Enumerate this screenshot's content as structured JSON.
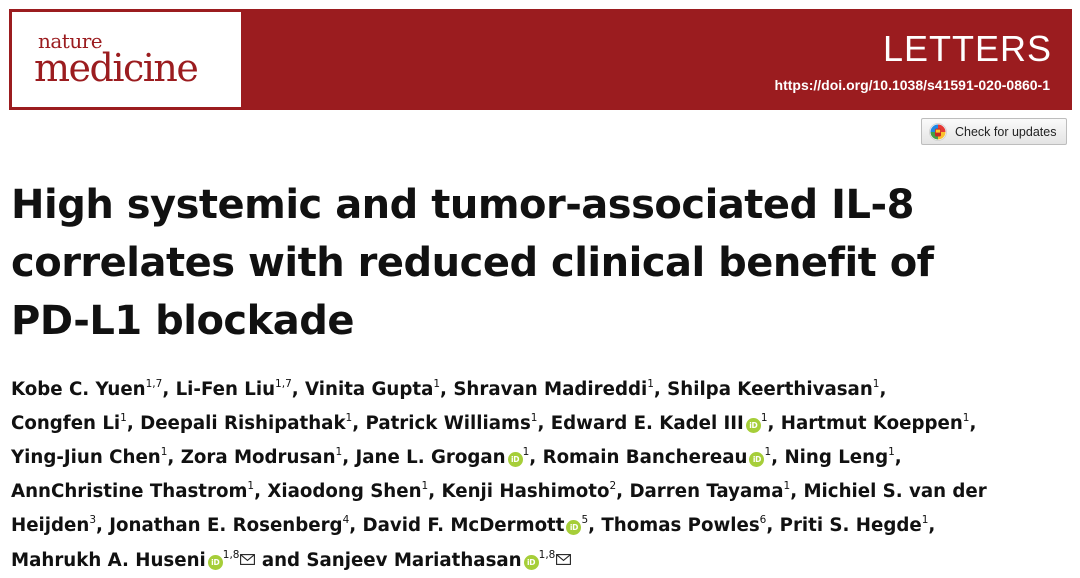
{
  "header": {
    "logo_top": "nature",
    "logo_bottom": "medicine",
    "section": "LETTERS",
    "doi": "https://doi.org/10.1038/s41591-020-0860-1",
    "brand_color": "#9b1c1f"
  },
  "check_updates": {
    "label": "Check for updates",
    "icon": "crossmark-icon"
  },
  "article": {
    "title_lines": [
      "High systemic and tumor-associated IL-8",
      "correlates with reduced clinical benefit of",
      "PD-L1 blockade"
    ]
  },
  "authors": {
    "orcid_color": "#a6ce39",
    "lines": [
      [
        {
          "name": "Kobe C. Yuen",
          "sup": "1,7"
        },
        {
          "name": "Li-Fen Liu",
          "sup": "1,7"
        },
        {
          "name": "Vinita Gupta",
          "sup": "1"
        },
        {
          "name": "Shravan Madireddi",
          "sup": "1"
        },
        {
          "name": "Shilpa Keerthivasan",
          "sup": "1",
          "trail": ","
        }
      ],
      [
        {
          "name": "Congfen Li",
          "sup": "1"
        },
        {
          "name": "Deepali Rishipathak",
          "sup": "1"
        },
        {
          "name": "Patrick Williams",
          "sup": "1"
        },
        {
          "name": "Edward E. Kadel III",
          "sup": "1",
          "orcid": true
        },
        {
          "name": "Hartmut Koeppen",
          "sup": "1",
          "trail": ","
        }
      ],
      [
        {
          "name": "Ying-Jiun Chen",
          "sup": "1"
        },
        {
          "name": "Zora Modrusan",
          "sup": "1"
        },
        {
          "name": "Jane L. Grogan",
          "sup": "1",
          "orcid": true
        },
        {
          "name": "Romain Banchereau",
          "sup": "1",
          "orcid": true
        },
        {
          "name": "Ning Leng",
          "sup": "1",
          "trail": ","
        }
      ],
      [
        {
          "name": "AnnChristine Thastrom",
          "sup": "1"
        },
        {
          "name": "Xiaodong Shen",
          "sup": "1"
        },
        {
          "name": "Kenji Hashimoto",
          "sup": "2"
        },
        {
          "name": "Darren Tayama",
          "sup": "1"
        },
        {
          "name": "Michiel S. van der",
          "noSep": true
        }
      ],
      [
        {
          "name": "Heijden",
          "sup": "3"
        },
        {
          "name": "Jonathan E. Rosenberg",
          "sup": "4"
        },
        {
          "name": "David F. McDermott",
          "sup": "5",
          "orcid": true
        },
        {
          "name": "Thomas Powles",
          "sup": "6"
        },
        {
          "name": "Priti S. Hegde",
          "sup": "1",
          "trail": ","
        }
      ],
      [
        {
          "name": "Mahrukh A. Huseni",
          "sup": "1,8",
          "orcid": true,
          "email": true,
          "trail": " and",
          "noComma": true
        },
        {
          "name": "Sanjeev Mariathasan",
          "sup": "1,8",
          "orcid": true,
          "email": true,
          "noSep": true
        }
      ]
    ]
  }
}
